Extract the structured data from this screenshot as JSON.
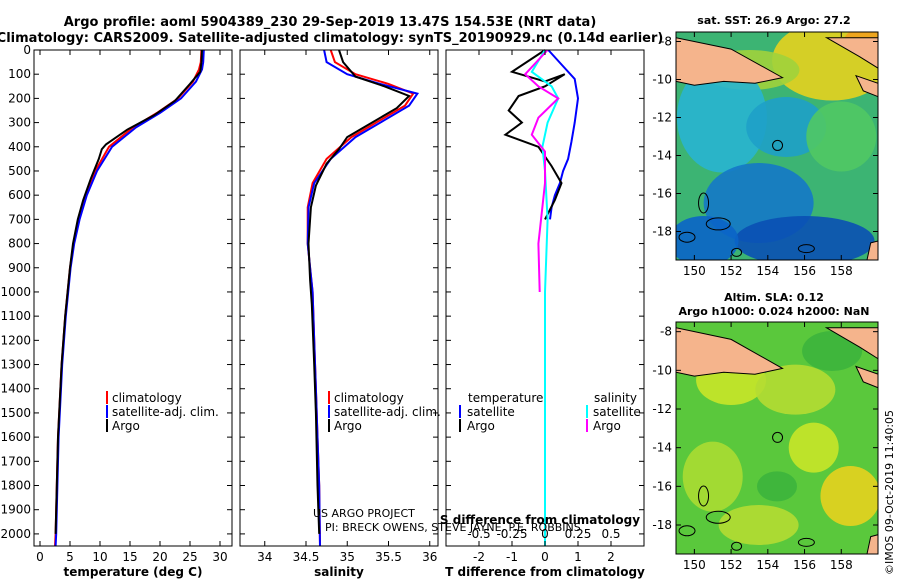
{
  "header": {
    "line1": "Argo profile: aoml 5904389_230 29-Sep-2019 13.47S 154.53E (NRT data)",
    "line2": "Climatology: CARS2009. Satellite-adjusted climatology: synTS_20190929.nc (0.14d earlier)"
  },
  "colors": {
    "clim": "#ff0000",
    "sat": "#0000ff",
    "argo": "#000000",
    "sat_s": "#00ffff",
    "argo_s": "#ff00ff"
  },
  "credits": {
    "line1": "US ARGO PROJECT",
    "line2": "PI: BRECK OWENS, STEVE JAYNE, P.E. ROBBINS"
  },
  "watermark": "©IMOS 09-Oct-2019 11:40:05",
  "chart_data": [
    {
      "id": "temperature",
      "type": "line",
      "xlabel": "temperature (deg C)",
      "ylabel": "",
      "xlim": [
        -1,
        32
      ],
      "ylim": [
        2050,
        0
      ],
      "xticks": [
        0,
        5,
        10,
        15,
        20,
        25,
        30
      ],
      "yticks": [
        0,
        100,
        200,
        300,
        400,
        500,
        600,
        700,
        800,
        900,
        1000,
        1100,
        1200,
        1300,
        1400,
        1500,
        1600,
        1700,
        1800,
        1900,
        2000
      ],
      "legend": [
        "climatology",
        "satellite-adj. clim.",
        "Argo"
      ],
      "series": [
        {
          "name": "climatology",
          "color": "#ff0000",
          "x": [
            26.9,
            26.8,
            26.5,
            25.5,
            23.0,
            19.5,
            15.5,
            11.5,
            9.2,
            7.6,
            6.4,
            5.6,
            5.0,
            4.6,
            4.2,
            3.9,
            3.6,
            3.4,
            3.2,
            3.0,
            2.8,
            2.6,
            2.5
          ],
          "y": [
            0,
            50,
            80,
            130,
            200,
            260,
            320,
            400,
            500,
            600,
            700,
            800,
            900,
            1000,
            1100,
            1200,
            1300,
            1400,
            1500,
            1600,
            1800,
            2000,
            2050
          ]
        },
        {
          "name": "satellite-adj. clim.",
          "color": "#0000ff",
          "x": [
            27.3,
            27.2,
            27.0,
            26.0,
            23.5,
            20.0,
            16.0,
            12.0,
            9.5,
            7.8,
            6.6,
            5.7,
            5.1,
            4.7,
            4.3,
            4.0,
            3.7,
            3.5,
            3.3,
            3.1,
            2.9,
            2.7,
            2.6
          ],
          "y": [
            0,
            50,
            80,
            130,
            200,
            260,
            320,
            400,
            500,
            600,
            700,
            800,
            900,
            1000,
            1100,
            1200,
            1300,
            1400,
            1500,
            1600,
            1800,
            2000,
            2050
          ]
        },
        {
          "name": "Argo",
          "color": "#000000",
          "x": [
            27.0,
            26.9,
            26.7,
            25.0,
            22.5,
            19.0,
            14.5,
            11.0,
            10.3,
            9.8,
            8.5,
            7.2,
            6.3,
            5.5,
            5.0,
            4.6,
            4.2,
            3.9,
            3.6,
            3.4,
            3.2,
            3.0,
            2.8,
            2.6
          ],
          "y": [
            0,
            50,
            90,
            140,
            210,
            270,
            330,
            390,
            410,
            450,
            530,
            620,
            700,
            800,
            900,
            1000,
            1100,
            1200,
            1300,
            1400,
            1500,
            1600,
            1800,
            2000
          ]
        }
      ]
    },
    {
      "id": "salinity",
      "type": "line",
      "xlabel": "salinity",
      "xlim": [
        33.7,
        36.1
      ],
      "ylim": [
        2050,
        0
      ],
      "xticks": [
        34,
        34.5,
        35,
        35.5,
        36
      ],
      "xticklabels": [
        "34",
        "34.5",
        "35",
        "35.5",
        "36"
      ],
      "legend": [
        "climatology",
        "satellite-adj. clim.",
        "Argo"
      ],
      "series": [
        {
          "name": "climatology",
          "color": "#ff0000",
          "x": [
            34.8,
            34.85,
            35.1,
            35.5,
            35.8,
            35.7,
            35.4,
            35.05,
            34.75,
            34.58,
            34.52,
            34.52,
            34.55,
            34.58,
            34.6,
            34.62,
            34.64,
            34.66,
            34.67
          ],
          "y": [
            0,
            50,
            100,
            140,
            180,
            230,
            290,
            360,
            450,
            550,
            650,
            800,
            900,
            1000,
            1200,
            1400,
            1600,
            1800,
            2050
          ]
        },
        {
          "name": "satellite-adj. clim.",
          "color": "#0000ff",
          "x": [
            34.72,
            34.75,
            35.0,
            35.4,
            35.85,
            35.75,
            35.45,
            35.1,
            34.8,
            34.6,
            34.53,
            34.52,
            34.55,
            34.58,
            34.6,
            34.62,
            34.64,
            34.66,
            34.67
          ],
          "y": [
            0,
            50,
            100,
            140,
            180,
            230,
            290,
            360,
            450,
            550,
            650,
            800,
            900,
            1000,
            1200,
            1400,
            1600,
            1800,
            2050
          ]
        },
        {
          "name": "Argo",
          "color": "#000000",
          "x": [
            34.9,
            34.95,
            35.1,
            35.45,
            35.75,
            35.6,
            35.3,
            35.0,
            34.9,
            34.75,
            34.62,
            34.56,
            34.53,
            34.55,
            34.57,
            34.6,
            34.62,
            34.64,
            34.66
          ],
          "y": [
            0,
            50,
            110,
            150,
            190,
            240,
            300,
            360,
            410,
            470,
            560,
            650,
            800,
            950,
            1050,
            1300,
            1500,
            1800,
            2000
          ]
        }
      ]
    },
    {
      "id": "difference",
      "type": "line",
      "xlabel": "T difference from climatology",
      "top_xlabel": "S difference from climatology",
      "xlim": [
        -3,
        3
      ],
      "ylim": [
        2050,
        0
      ],
      "xticks": [
        -2,
        -1,
        0,
        1,
        2
      ],
      "xticklabels": [
        "-2",
        "-1",
        "0",
        "1",
        "2"
      ],
      "top_xticks": [
        -0.5,
        -0.25,
        0,
        0.25,
        0.5
      ],
      "top_xticklabels": [
        "-0.5",
        "-0.25",
        "0",
        "0.25",
        "0.5"
      ],
      "s_scale": 4,
      "legend_title_left": "temperature",
      "legend_title_right": "salinity",
      "legend_left": [
        "satellite",
        "Argo"
      ],
      "legend_right": [
        "satellite",
        "Argo"
      ],
      "series": [
        {
          "name": "T satellite",
          "color": "#0000ff",
          "x": [
            0.1,
            0.5,
            0.9,
            1.0,
            0.9,
            0.8,
            0.7,
            0.55,
            0.45,
            0.3,
            0.2,
            0.15
          ],
          "y": [
            0,
            60,
            120,
            200,
            300,
            380,
            450,
            500,
            550,
            600,
            650,
            700
          ]
        },
        {
          "name": "T Argo",
          "color": "#000000",
          "x": [
            0.0,
            -1.0,
            0.0,
            0.6,
            0.0,
            -0.8,
            -1.1,
            -0.7,
            -1.2,
            -0.2,
            0.2,
            0.5,
            0.3,
            0.0
          ],
          "y": [
            0,
            90,
            130,
            100,
            150,
            190,
            250,
            300,
            350,
            400,
            480,
            550,
            620,
            700
          ]
        },
        {
          "name": "S satellite",
          "color": "#00ffff",
          "x": [
            0.0,
            -0.1,
            0.05,
            0.1,
            0.02,
            -0.02,
            0.0,
            0.02,
            0.0,
            0.0,
            0.0,
            0.0
          ],
          "y": [
            0,
            90,
            150,
            200,
            300,
            400,
            500,
            700,
            1000,
            1400,
            1800,
            2050
          ]
        },
        {
          "name": "S Argo",
          "color": "#ff00ff",
          "x": [
            0.02,
            -0.15,
            -0.05,
            0.1,
            -0.05,
            -0.1,
            0.0,
            0.0,
            -0.05,
            -0.04
          ],
          "y": [
            0,
            100,
            150,
            200,
            280,
            350,
            420,
            550,
            800,
            1000
          ]
        }
      ]
    },
    {
      "id": "sst_map",
      "type": "heatmap",
      "title": "sat. SST: 26.9 Argo: 27.2",
      "xlim": [
        149,
        160
      ],
      "ylim": [
        -19.5,
        -7.5
      ],
      "xticks": [
        150,
        152,
        154,
        156,
        158
      ],
      "yticks": [
        -8,
        -10,
        -12,
        -14,
        -16,
        -18
      ],
      "marker": {
        "lon": 154.53,
        "lat": -13.47
      }
    },
    {
      "id": "sla_map",
      "type": "heatmap",
      "title": "Altim. SLA: 0.12",
      "subtitle": "Argo h1000: 0.024 h2000: NaN",
      "xlim": [
        149,
        160
      ],
      "ylim": [
        -19.5,
        -7.5
      ],
      "xticks": [
        150,
        152,
        154,
        156,
        158
      ],
      "yticks": [
        -8,
        -10,
        -12,
        -14,
        -16,
        -18
      ],
      "marker": {
        "lon": 154.53,
        "lat": -13.47
      }
    }
  ]
}
